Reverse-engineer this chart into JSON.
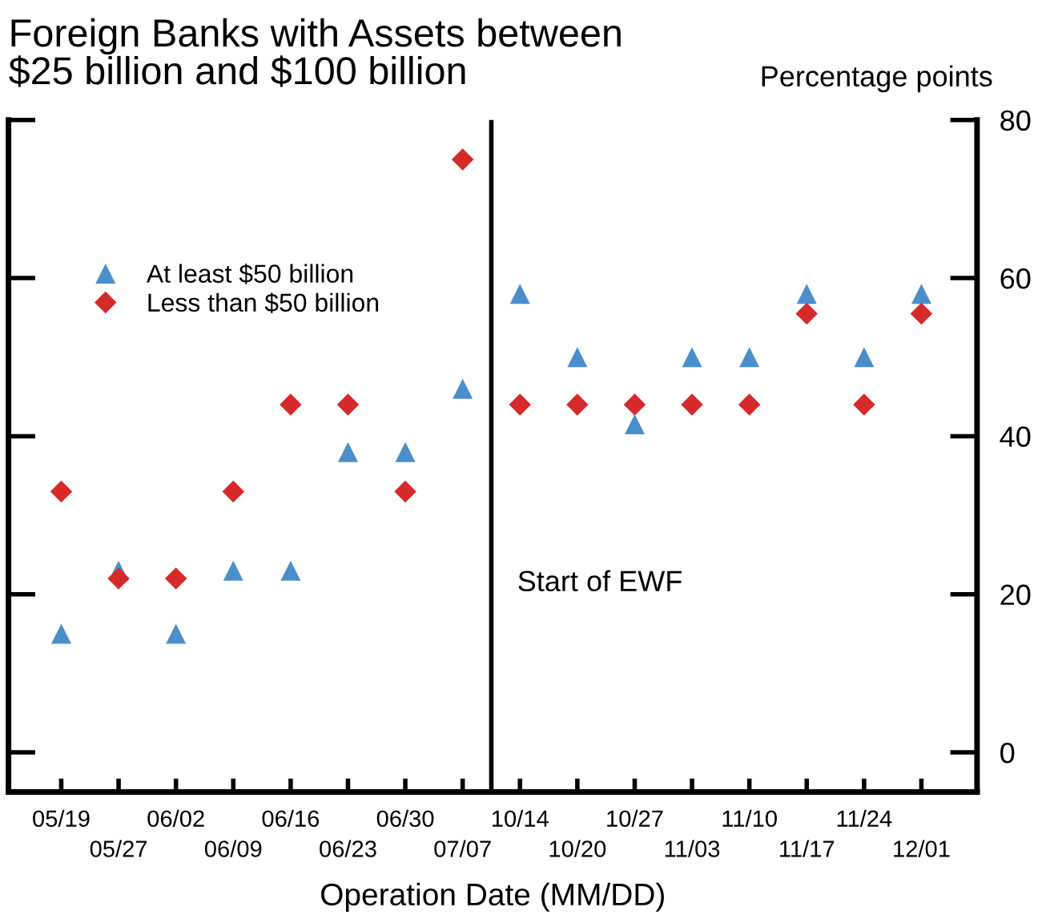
{
  "chart_data": {
    "type": "scatter",
    "title": "Foreign Banks with Assets between\n$25 billion and $100 billion",
    "ylabel": "Percentage points",
    "xlabel": "Operation Date (MM/DD)",
    "categories": [
      "05/19",
      "05/27",
      "06/02",
      "06/09",
      "06/16",
      "06/23",
      "06/30",
      "07/07",
      "10/14",
      "10/20",
      "10/27",
      "11/03",
      "11/10",
      "11/17",
      "11/24",
      "12/01"
    ],
    "series": [
      {
        "name": "At least $50 billion",
        "color": "#4a8fcc",
        "marker": "triangle",
        "values": [
          15,
          23,
          15,
          23,
          23,
          38,
          38,
          46,
          58,
          50,
          41.5,
          50,
          50,
          58,
          50,
          58
        ]
      },
      {
        "name": "Less than $50 billion",
        "color": "#d62a2a",
        "marker": "diamond",
        "values": [
          33,
          22,
          22,
          33,
          44,
          44,
          33,
          75,
          44,
          44,
          44,
          44,
          44,
          55.5,
          44,
          55.5
        ]
      }
    ],
    "ylim": [
      -5,
      80
    ],
    "yticks": [
      0,
      20,
      40,
      60,
      80
    ],
    "annotations": [
      "Start of EWF"
    ],
    "grid": false,
    "legend": "top left"
  }
}
